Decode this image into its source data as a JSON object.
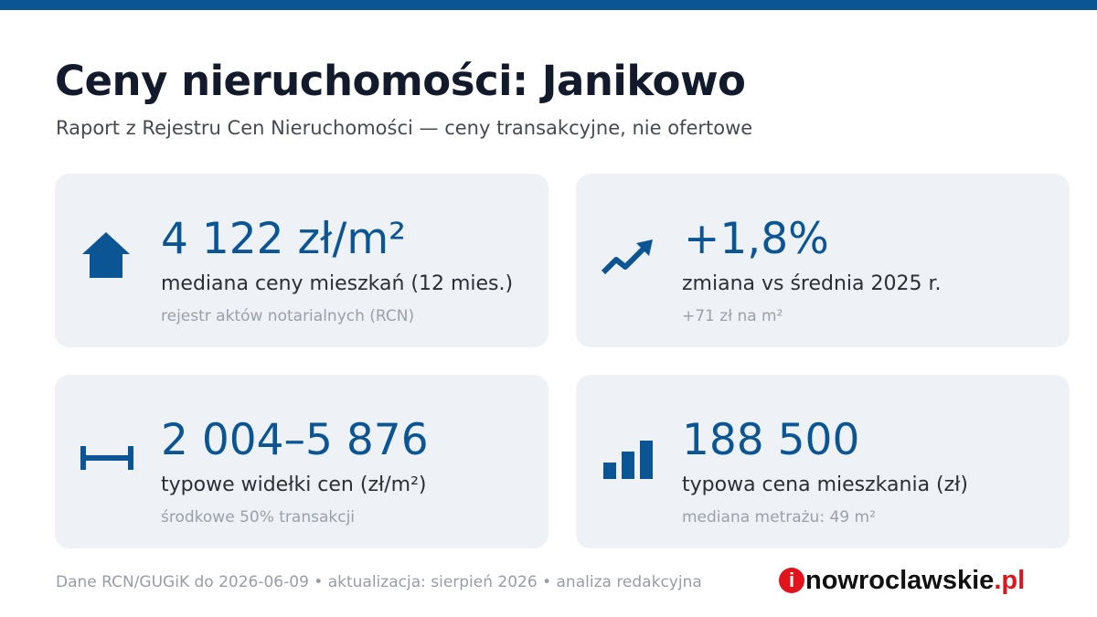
{
  "header": {
    "title": "Ceny nieruchomości: Janikowo",
    "subtitle": "Raport z Rejestru Cen Nieruchomości — ceny transakcyjne, nie ofertowe"
  },
  "cards": [
    {
      "value": "4 122 zł/m²",
      "label": "mediana ceny mieszkań (12 mies.)",
      "note": "rejestr aktów notarialnych (RCN)"
    },
    {
      "value": "+1,8%",
      "label": "zmiana vs średnia 2025 r.",
      "note": "+71 zł na m²"
    },
    {
      "value": "2 004–5 876",
      "label": "typowe widełki cen (zł/m²)",
      "note": "środkowe 50% transakcji"
    },
    {
      "value": "188 500",
      "label": "typowa cena mieszkania (zł)",
      "note": "mediana metrażu: 49 m²"
    }
  ],
  "footer": {
    "source": "Dane RCN/GUGiK do 2026-06-09 • aktualizacja: sierpień 2026 • analiza redakcyjna"
  },
  "logo": {
    "mark": "i",
    "name": "nowroclawskie",
    "suffix": ".pl"
  }
}
